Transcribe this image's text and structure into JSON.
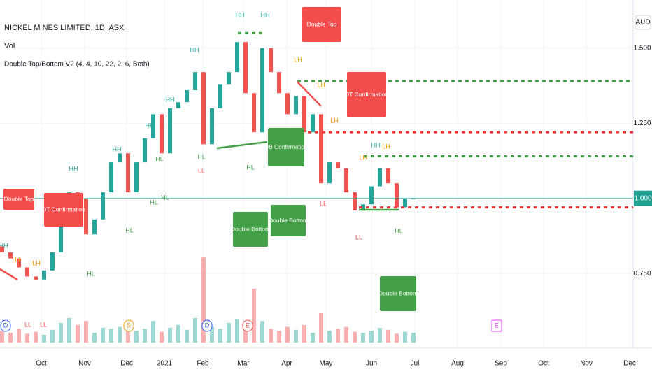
{
  "chart_data": {
    "type": "candlestick",
    "title": "NICKEL MINES LIMITED, 1D, ASX",
    "volume_label": "Vol",
    "indicator_label": "Double Top/Bottom V2 (4, 4, 10, 22, 2, 6, Both)",
    "currency": "AUD",
    "x_ticks": [
      "Oct",
      "Nov",
      "Dec",
      "2021",
      "Feb",
      "Mar",
      "Apr",
      "May",
      "Jun",
      "Jul",
      "Aug",
      "Sep",
      "Oct",
      "Nov",
      "Dec"
    ],
    "open": [
      0.84,
      0.82,
      0.8,
      0.77,
      0.74,
      0.73,
      0.76,
      0.82,
      0.92,
      1.02,
      1.0,
      0.88,
      0.93,
      1.02,
      1.12,
      1.15,
      1.02,
      1.12,
      1.2,
      1.28,
      1.15,
      1.3,
      1.32,
      1.36,
      1.42,
      1.18,
      1.3,
      1.38,
      1.42,
      1.52,
      1.35,
      1.22,
      1.5,
      1.42,
      1.35,
      1.28,
      1.34,
      1.22,
      1.28,
      1.05,
      1.12,
      1.1,
      1.02,
      0.96,
      0.98,
      1.04,
      1.1,
      1.05,
      0.97,
      1.0
    ],
    "close": [
      0.82,
      0.8,
      0.77,
      0.74,
      0.73,
      0.76,
      0.82,
      0.92,
      1.02,
      1.0,
      0.88,
      0.93,
      1.02,
      1.12,
      1.15,
      1.02,
      1.12,
      1.2,
      1.28,
      1.15,
      1.3,
      1.32,
      1.36,
      1.42,
      1.18,
      1.3,
      1.38,
      1.42,
      1.52,
      1.35,
      1.22,
      1.5,
      1.42,
      1.35,
      1.28,
      1.34,
      1.22,
      1.28,
      1.05,
      1.12,
      1.1,
      1.02,
      0.96,
      0.98,
      1.04,
      1.1,
      1.05,
      0.97,
      1.0,
      1.0
    ],
    "volume": [
      12,
      10,
      14,
      9,
      11,
      8,
      13,
      20,
      25,
      18,
      22,
      10,
      15,
      14,
      16,
      20,
      12,
      14,
      22,
      11,
      15,
      18,
      13,
      25,
      87,
      16,
      14,
      20,
      24,
      18,
      55,
      22,
      14,
      12,
      16,
      13,
      18,
      10,
      30,
      12,
      14,
      16,
      11,
      10,
      12,
      15,
      13,
      9,
      11,
      10
    ],
    "up_color": "#26a69a",
    "down_color": "#ef5350",
    "ylim": [
      0.52,
      1.66
    ],
    "y2lim": [
      0,
      100
    ],
    "yticks": [
      {
        "value": 0.75,
        "label": "0.750"
      },
      {
        "value": 1.0,
        "label": "1.000"
      },
      {
        "value": 1.25,
        "label": "1.250"
      },
      {
        "value": 1.5,
        "label": "1.500"
      }
    ],
    "last_price": {
      "value": 1.0,
      "label": "1.000"
    },
    "levels": [
      {
        "price": 1.55,
        "color": "#43a047"
      },
      {
        "price": 1.39,
        "color": "#43a047"
      },
      {
        "price": 1.22,
        "color": "#e53935"
      },
      {
        "price": 1.14,
        "color": "#43a047"
      },
      {
        "price": 0.97,
        "color": "#e53935"
      }
    ],
    "pivots": [
      "HH",
      "LH",
      "LH",
      "LL",
      "LL",
      "HH",
      "HL",
      "HH",
      "HL",
      "HH",
      "HL",
      "HL",
      "HH",
      "HL",
      "LL",
      "HL",
      "HH",
      "HH",
      "HL",
      "HH",
      "LH",
      "LH",
      "LH",
      "LL",
      "LH",
      "HH",
      "LH",
      "LL",
      "HL"
    ],
    "callouts": [
      "Double Top",
      "DT Confirmation",
      "Double Top",
      "DT Confirmation",
      "DB Confirmation",
      "Double Bottom",
      "Double Bottom",
      "Double Bottom"
    ],
    "events": [
      "D",
      "S",
      "D",
      "E",
      "E"
    ]
  }
}
